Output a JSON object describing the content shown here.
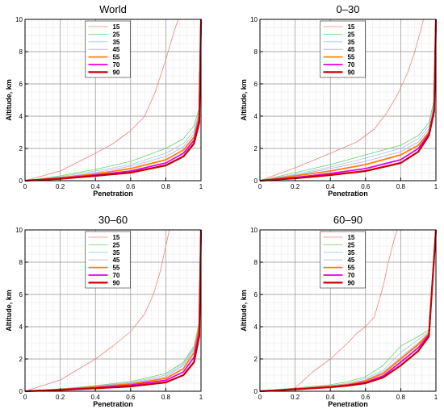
{
  "colors": {
    "15": "#f08080",
    "25": "#66d266",
    "35": "#9ec8e8",
    "45": "#b8a8ec",
    "55": "#ff8000",
    "70": "#e600e6",
    "90": "#c80000"
  },
  "chart_data": [
    {
      "type": "line",
      "title": "World",
      "xlabel": "Penetration",
      "ylabel": "Altitude, km",
      "xlim": [
        0,
        1
      ],
      "ylim": [
        0,
        10
      ],
      "xticks": [
        "0",
        "0.2",
        "0.4",
        "0.6",
        "0.8",
        "1"
      ],
      "yticks": [
        "0",
        "2",
        "4",
        "6",
        "8",
        "10"
      ],
      "grid": true,
      "legend_position": "top-center",
      "series": [
        {
          "name": "15",
          "x": [
            0,
            0.2,
            0.4,
            0.5,
            0.6,
            0.68,
            0.74,
            0.8,
            0.84,
            0.87
          ],
          "y": [
            0,
            0.6,
            1.7,
            2.3,
            3.1,
            4.0,
            5.5,
            7.5,
            9.0,
            10
          ]
        },
        {
          "name": "25",
          "x": [
            0,
            0.2,
            0.4,
            0.6,
            0.8,
            0.9,
            0.96,
            0.99,
            1.0
          ],
          "y": [
            0,
            0.3,
            0.7,
            1.2,
            2.0,
            2.6,
            3.4,
            4.5,
            10
          ]
        },
        {
          "name": "35",
          "x": [
            0,
            0.2,
            0.4,
            0.6,
            0.8,
            0.9,
            0.96,
            0.99,
            1.0
          ],
          "y": [
            0,
            0.25,
            0.6,
            1.0,
            1.7,
            2.3,
            3.1,
            4.3,
            10
          ]
        },
        {
          "name": "45",
          "x": [
            0,
            0.2,
            0.4,
            0.6,
            0.8,
            0.9,
            0.96,
            0.99,
            1.0
          ],
          "y": [
            0,
            0.2,
            0.5,
            0.9,
            1.5,
            2.1,
            2.9,
            4.2,
            10
          ]
        },
        {
          "name": "55",
          "x": [
            0,
            0.2,
            0.4,
            0.6,
            0.8,
            0.9,
            0.96,
            0.99,
            1.0
          ],
          "y": [
            0,
            0.18,
            0.42,
            0.75,
            1.3,
            1.9,
            2.7,
            4.0,
            10
          ]
        },
        {
          "name": "70",
          "x": [
            0,
            0.2,
            0.4,
            0.6,
            0.8,
            0.9,
            0.96,
            0.99,
            1.0
          ],
          "y": [
            0,
            0.15,
            0.35,
            0.6,
            1.1,
            1.7,
            2.5,
            3.8,
            10
          ]
        },
        {
          "name": "90",
          "x": [
            0,
            0.2,
            0.4,
            0.6,
            0.8,
            0.9,
            0.96,
            0.99,
            1.0
          ],
          "y": [
            0,
            0.12,
            0.3,
            0.5,
            0.95,
            1.5,
            2.3,
            3.6,
            10
          ]
        }
      ]
    },
    {
      "type": "line",
      "title": "0–30",
      "xlabel": "Penetration",
      "ylabel": "Altitude, km",
      "xlim": [
        0,
        1
      ],
      "ylim": [
        0,
        10
      ],
      "xticks": [
        "0",
        "0.2",
        "0.4",
        "0.6",
        "0.8",
        "1"
      ],
      "yticks": [
        "0",
        "2",
        "4",
        "6",
        "8",
        "10"
      ],
      "grid": true,
      "legend_position": "top-center",
      "series": [
        {
          "name": "15",
          "x": [
            0,
            0.2,
            0.4,
            0.55,
            0.65,
            0.72,
            0.78,
            0.84,
            0.88,
            0.91,
            0.93
          ],
          "y": [
            0,
            0.8,
            1.7,
            2.4,
            3.2,
            4.2,
            5.3,
            6.7,
            8.0,
            9.2,
            10
          ]
        },
        {
          "name": "25",
          "x": [
            0,
            0.2,
            0.4,
            0.6,
            0.8,
            0.9,
            0.96,
            0.99,
            1.0
          ],
          "y": [
            0,
            0.5,
            1.0,
            1.6,
            2.2,
            2.8,
            3.6,
            5.0,
            10
          ]
        },
        {
          "name": "35",
          "x": [
            0,
            0.2,
            0.4,
            0.6,
            0.8,
            0.9,
            0.96,
            0.99,
            1.0
          ],
          "y": [
            0,
            0.4,
            0.85,
            1.4,
            2.0,
            2.6,
            3.4,
            4.8,
            10
          ]
        },
        {
          "name": "45",
          "x": [
            0,
            0.2,
            0.4,
            0.6,
            0.8,
            0.9,
            0.96,
            0.99,
            1.0
          ],
          "y": [
            0,
            0.35,
            0.75,
            1.2,
            1.8,
            2.4,
            3.2,
            4.6,
            10
          ]
        },
        {
          "name": "55",
          "x": [
            0,
            0.2,
            0.4,
            0.6,
            0.8,
            0.9,
            0.96,
            0.99,
            1.0
          ],
          "y": [
            0,
            0.3,
            0.6,
            1.0,
            1.6,
            2.2,
            3.0,
            4.5,
            10
          ]
        },
        {
          "name": "70",
          "x": [
            0,
            0.2,
            0.4,
            0.6,
            0.8,
            0.9,
            0.96,
            0.99,
            1.0
          ],
          "y": [
            0,
            0.2,
            0.45,
            0.75,
            1.3,
            2.0,
            2.9,
            4.4,
            10
          ]
        },
        {
          "name": "90",
          "x": [
            0,
            0.2,
            0.4,
            0.6,
            0.8,
            0.9,
            0.96,
            0.99,
            1.0
          ],
          "y": [
            0,
            0.15,
            0.35,
            0.6,
            1.1,
            1.8,
            2.8,
            4.3,
            10
          ]
        }
      ]
    },
    {
      "type": "line",
      "title": "30–60",
      "xlabel": "Penetration",
      "ylabel": "Altitude, km",
      "xlim": [
        0,
        1
      ],
      "ylim": [
        0,
        10
      ],
      "xticks": [
        "0",
        "0.2",
        "0.4",
        "0.6",
        "0.8",
        "1"
      ],
      "yticks": [
        "0",
        "2",
        "4",
        "6",
        "8",
        "10"
      ],
      "grid": true,
      "legend_position": "top-center",
      "series": [
        {
          "name": "15",
          "x": [
            0,
            0.2,
            0.4,
            0.5,
            0.6,
            0.68,
            0.73,
            0.77,
            0.8,
            0.82
          ],
          "y": [
            0,
            0.7,
            2.0,
            2.8,
            3.7,
            4.8,
            6.0,
            7.5,
            9.0,
            10
          ]
        },
        {
          "name": "25",
          "x": [
            0,
            0.2,
            0.4,
            0.6,
            0.8,
            0.9,
            0.96,
            0.99,
            1.0
          ],
          "y": [
            0,
            0.15,
            0.35,
            0.6,
            1.1,
            1.8,
            2.8,
            4.3,
            10
          ]
        },
        {
          "name": "35",
          "x": [
            0,
            0.2,
            0.4,
            0.6,
            0.8,
            0.9,
            0.96,
            0.99,
            1.0
          ],
          "y": [
            0,
            0.14,
            0.32,
            0.55,
            1.0,
            1.7,
            2.7,
            4.2,
            10
          ]
        },
        {
          "name": "45",
          "x": [
            0,
            0.2,
            0.4,
            0.6,
            0.8,
            0.9,
            0.96,
            0.99,
            1.0
          ],
          "y": [
            0,
            0.13,
            0.3,
            0.5,
            0.9,
            1.6,
            2.6,
            4.1,
            10
          ]
        },
        {
          "name": "55",
          "x": [
            0,
            0.2,
            0.4,
            0.6,
            0.8,
            0.9,
            0.96,
            0.99,
            1.0
          ],
          "y": [
            0,
            0.12,
            0.27,
            0.45,
            0.8,
            1.4,
            2.4,
            4.0,
            10
          ]
        },
        {
          "name": "70",
          "x": [
            0,
            0.2,
            0.4,
            0.6,
            0.8,
            0.9,
            0.96,
            0.99,
            1.0
          ],
          "y": [
            0,
            0.1,
            0.22,
            0.38,
            0.68,
            1.2,
            2.1,
            3.7,
            10
          ]
        },
        {
          "name": "90",
          "x": [
            0,
            0.2,
            0.4,
            0.6,
            0.8,
            0.9,
            0.96,
            0.99,
            1.0
          ],
          "y": [
            0,
            0.08,
            0.18,
            0.3,
            0.55,
            1.0,
            1.8,
            3.4,
            10
          ]
        }
      ]
    },
    {
      "type": "line",
      "title": "60–90",
      "xlabel": "Penetration",
      "ylabel": "Altitude, km",
      "xlim": [
        0,
        1
      ],
      "ylim": [
        0,
        10
      ],
      "xticks": [
        "0",
        "0.2",
        "0.4",
        "0.6",
        "0.8",
        "1"
      ],
      "yticks": [
        "0",
        "2",
        "4",
        "6",
        "8",
        "10"
      ],
      "grid": true,
      "legend_position": "top-center",
      "series": [
        {
          "name": "15",
          "x": [
            0,
            0.2,
            0.3,
            0.4,
            0.5,
            0.55,
            0.6,
            0.65,
            0.7,
            0.73,
            0.76,
            0.78
          ],
          "y": [
            0,
            0.2,
            1.2,
            2.0,
            3.0,
            3.6,
            4.0,
            4.6,
            6.5,
            8.0,
            9.3,
            10
          ]
        },
        {
          "name": "25",
          "x": [
            0,
            0.2,
            0.4,
            0.5,
            0.6,
            0.7,
            0.8,
            0.9,
            0.96,
            1.0
          ],
          "y": [
            0,
            0.2,
            0.4,
            0.6,
            0.9,
            1.6,
            2.8,
            3.4,
            3.8,
            10
          ]
        },
        {
          "name": "35",
          "x": [
            0,
            0.2,
            0.4,
            0.5,
            0.6,
            0.7,
            0.8,
            0.9,
            0.96,
            1.0
          ],
          "y": [
            0,
            0.18,
            0.35,
            0.5,
            0.8,
            1.3,
            2.4,
            3.2,
            3.7,
            10
          ]
        },
        {
          "name": "45",
          "x": [
            0,
            0.2,
            0.4,
            0.5,
            0.6,
            0.7,
            0.8,
            0.9,
            0.96,
            1.0
          ],
          "y": [
            0,
            0.16,
            0.32,
            0.45,
            0.7,
            1.2,
            2.1,
            3.0,
            3.6,
            10
          ]
        },
        {
          "name": "55",
          "x": [
            0,
            0.2,
            0.4,
            0.5,
            0.6,
            0.7,
            0.8,
            0.9,
            0.96,
            1.0
          ],
          "y": [
            0,
            0.15,
            0.3,
            0.42,
            0.65,
            1.1,
            2.0,
            2.9,
            3.6,
            10
          ]
        },
        {
          "name": "70",
          "x": [
            0,
            0.2,
            0.4,
            0.5,
            0.6,
            0.7,
            0.8,
            0.9,
            0.96,
            1.0
          ],
          "y": [
            0,
            0.13,
            0.27,
            0.38,
            0.55,
            0.95,
            1.8,
            2.7,
            3.5,
            10
          ]
        },
        {
          "name": "90",
          "x": [
            0,
            0.2,
            0.4,
            0.5,
            0.6,
            0.7,
            0.8,
            0.9,
            0.96,
            1.0
          ],
          "y": [
            0,
            0.12,
            0.25,
            0.35,
            0.5,
            0.85,
            1.6,
            2.5,
            3.4,
            10
          ]
        }
      ]
    }
  ]
}
